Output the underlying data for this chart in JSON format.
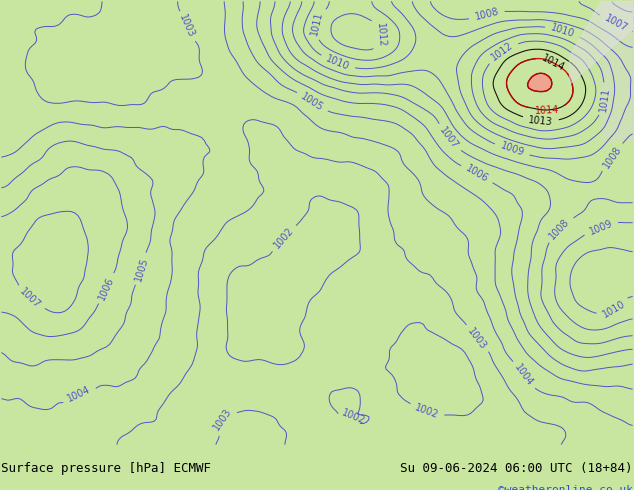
{
  "title_left": "Surface pressure [hPa] ECMWF",
  "title_right": "Su 09-06-2024 06:00 UTC (18+84)",
  "credit": "©weatheronline.co.uk",
  "bg_color": "#c8e6a0",
  "map_bg": "#b8e090",
  "contour_color_blue": "#4444cc",
  "contour_color_black": "#000000",
  "contour_color_red": "#cc0000",
  "label_color_blue": "#4444cc",
  "label_color_black": "#000000",
  "label_color_red": "#cc0000",
  "credit_color": "#2255cc",
  "pressure_min": 998,
  "pressure_max": 1016,
  "pressure_interval": 1,
  "fig_width": 6.34,
  "fig_height": 4.9,
  "dpi": 100,
  "title_fontsize": 9,
  "label_fontsize": 7,
  "credit_fontsize": 8
}
